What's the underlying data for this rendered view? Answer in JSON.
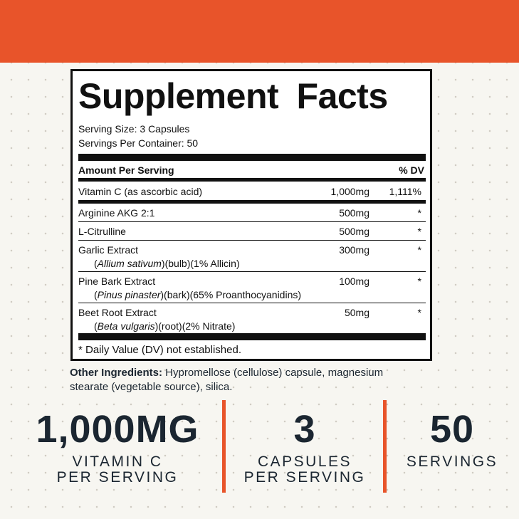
{
  "label": {
    "title": "Supplement Facts",
    "serving_size": "Serving Size: 3 Capsules",
    "servings_per_container": "Servings Per Container: 50",
    "header": {
      "amount": "Amount Per Serving",
      "dv": "% DV"
    },
    "rows": [
      {
        "name": "Vitamin C (as ascorbic acid)",
        "amount": "1,000mg",
        "dv": "1,111%"
      },
      {
        "name": "Arginine AKG 2:1",
        "amount": "500mg",
        "dv": "*"
      },
      {
        "name": "L-Citrulline",
        "amount": "500mg",
        "dv": "*"
      },
      {
        "name": "Garlic Extract",
        "sub": {
          "pre": "(",
          "latin": "Allium sativum",
          "post": ")(bulb)(1% Allicin)"
        },
        "amount": "300mg",
        "dv": "*"
      },
      {
        "name": "Pine Bark Extract",
        "sub": {
          "pre": "(",
          "latin": "Pinus pinaster",
          "post": ")(bark)(65% Proanthocyanidins)"
        },
        "amount": "100mg",
        "dv": "*"
      },
      {
        "name": "Beet Root Extract",
        "sub": {
          "pre": "(",
          "latin": "Beta vulgaris",
          "post": ")(root)(2% Nitrate)"
        },
        "amount": "50mg",
        "dv": "*"
      }
    ],
    "footnote": "* Daily Value (DV) not established."
  },
  "other_ingredients": {
    "label": "Other Ingredients:",
    "text": " Hypromellose (cellulose) capsule, magnesium stearate (vegetable source), silica."
  },
  "stats": [
    {
      "value": "1,000MG",
      "lines": [
        "VITAMIN C",
        "PER SERVING"
      ]
    },
    {
      "value": "3",
      "lines": [
        "CAPSULES",
        "PER SERVING"
      ]
    },
    {
      "value": "50",
      "lines": [
        "SERVINGS"
      ]
    }
  ]
}
